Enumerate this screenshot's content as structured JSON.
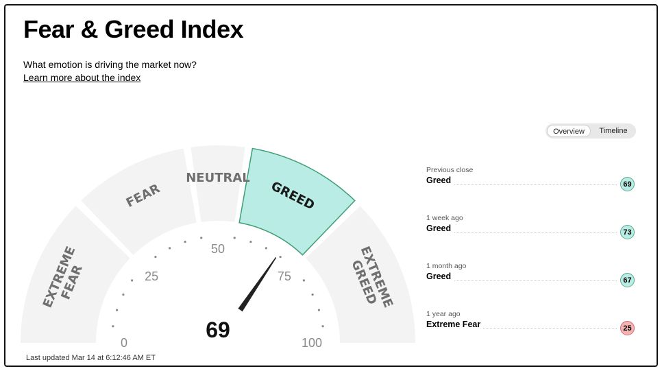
{
  "header": {
    "title": "Fear & Greed Index",
    "subtitle": "What emotion is driving the market now?",
    "learn_more": "Learn more about the index"
  },
  "view_toggle": {
    "options": [
      "Overview",
      "Timeline"
    ],
    "selected": "Overview"
  },
  "gauge": {
    "value": 69,
    "min": 0,
    "max": 100,
    "current_label": "GREED",
    "segments": [
      {
        "label": "EXTREME FEAR",
        "from": 0,
        "to": 25
      },
      {
        "label": "FEAR",
        "from": 25,
        "to": 45
      },
      {
        "label": "NEUTRAL",
        "from": 45,
        "to": 55
      },
      {
        "label": "GREED",
        "from": 55,
        "to": 75
      },
      {
        "label": "EXTREME GREED",
        "from": 75,
        "to": 100
      }
    ],
    "tick_labels": [
      "0",
      "25",
      "50",
      "75",
      "100"
    ],
    "colors": {
      "segment": "#f3f3f3",
      "active_segment": "#b9ece4",
      "active_border": "#3f9e74",
      "segment_text": "#6f6f6f",
      "needle": "#222222"
    }
  },
  "last_updated": "Last updated Mar 14 at 6:12:46 AM ET",
  "history": [
    {
      "label": "Previous close",
      "rating": "Greed",
      "value": "69",
      "sentiment": "greed"
    },
    {
      "label": "1 week ago",
      "rating": "Greed",
      "value": "73",
      "sentiment": "greed"
    },
    {
      "label": "1 month ago",
      "rating": "Greed",
      "value": "67",
      "sentiment": "greed"
    },
    {
      "label": "1 year ago",
      "rating": "Extreme Fear",
      "value": "25",
      "sentiment": "fear"
    }
  ]
}
